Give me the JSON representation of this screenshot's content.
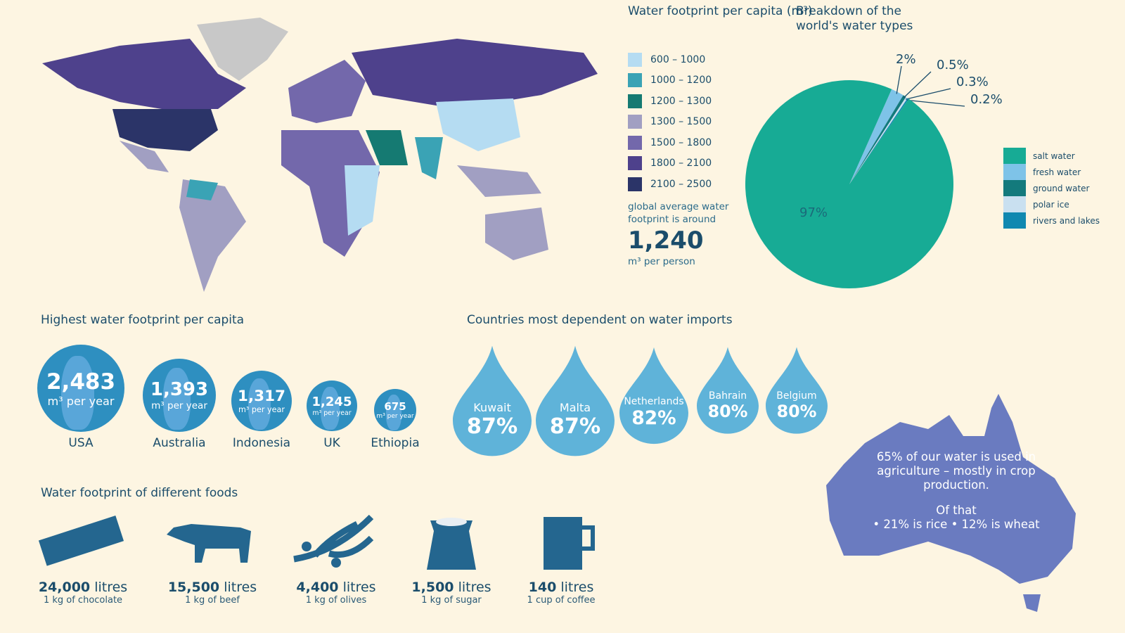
{
  "map": {
    "title": "Water footprint per capita (m³)",
    "legend": [
      {
        "label": "600 – 1000",
        "color": "#b5dcf2"
      },
      {
        "label": "1000 – 1200",
        "color": "#3aa3b5"
      },
      {
        "label": "1200 – 1300",
        "color": "#157a72"
      },
      {
        "label": "1300 – 1500",
        "color": "#a19fc2"
      },
      {
        "label": "1500 – 1800",
        "color": "#7368ab"
      },
      {
        "label": "1800 – 2100",
        "color": "#4e418c"
      },
      {
        "label": "2100 – 2500",
        "color": "#2b3468"
      }
    ],
    "no_data_color": "#c8c8c8",
    "avg_text": "global average water footprint is around",
    "avg_value": "1,240",
    "avg_unit": "m³ per person"
  },
  "chart_data": {
    "type": "pie",
    "title": "Breakdown of the world's water types",
    "slices": [
      {
        "name": "fresh water",
        "value": 2,
        "label": "2%",
        "color": "#7ec3e8"
      },
      {
        "name": "ground water",
        "value": 0.5,
        "label": "0.5%",
        "color": "#137a7c"
      },
      {
        "name": "polar ice",
        "value": 0.3,
        "label": "0.3%",
        "color": "#c9e0f0"
      },
      {
        "name": "rivers and lakes",
        "value": 0.2,
        "label": "0.2%",
        "color": "#0f88b0"
      },
      {
        "name": "salt water",
        "value": 97,
        "label": "97%",
        "color": "#17ab95"
      }
    ],
    "legend": [
      "salt water",
      "fresh water",
      "ground water",
      "polar ice",
      "rivers and lakes"
    ],
    "legend_position": "right"
  },
  "highest": {
    "title": "Highest water footprint per capita",
    "unit": "m³ per year",
    "items": [
      {
        "value": "2,483",
        "country": "USA"
      },
      {
        "value": "1,393",
        "country": "Australia"
      },
      {
        "value": "1,317",
        "country": "Indonesia"
      },
      {
        "value": "1,245",
        "country": "UK"
      },
      {
        "value": "675",
        "country": "Ethiopia"
      }
    ]
  },
  "imports": {
    "title": "Countries most dependent on water imports",
    "items": [
      {
        "country": "Kuwait",
        "pct": "87%"
      },
      {
        "country": "Malta",
        "pct": "87%"
      },
      {
        "country": "Netherlands",
        "pct": "82%"
      },
      {
        "country": "Bahrain",
        "pct": "80%"
      },
      {
        "country": "Belgium",
        "pct": "80%"
      }
    ]
  },
  "foods": {
    "title": "Water footprint of different foods",
    "items": [
      {
        "amount": "24,000",
        "unit": "litres",
        "desc": "1 kg of chocolate",
        "icon": "chocolate-icon"
      },
      {
        "amount": "15,500",
        "unit": "litres",
        "desc": "1 kg of beef",
        "icon": "cow-icon"
      },
      {
        "amount": "4,400",
        "unit": "litres",
        "desc": "1 kg of olives",
        "icon": "olive-branch-icon"
      },
      {
        "amount": "1,500",
        "unit": "litres",
        "desc": "1 kg of sugar",
        "icon": "sugar-bag-icon"
      },
      {
        "amount": "140",
        "unit": "litres",
        "desc": "1 cup of coffee",
        "icon": "mug-icon"
      }
    ]
  },
  "agriculture": {
    "line1": "65% of our water is used in agriculture – mostly in crop production.",
    "line2": "Of that",
    "line3": "• 21% is rice   • 12% is wheat"
  }
}
